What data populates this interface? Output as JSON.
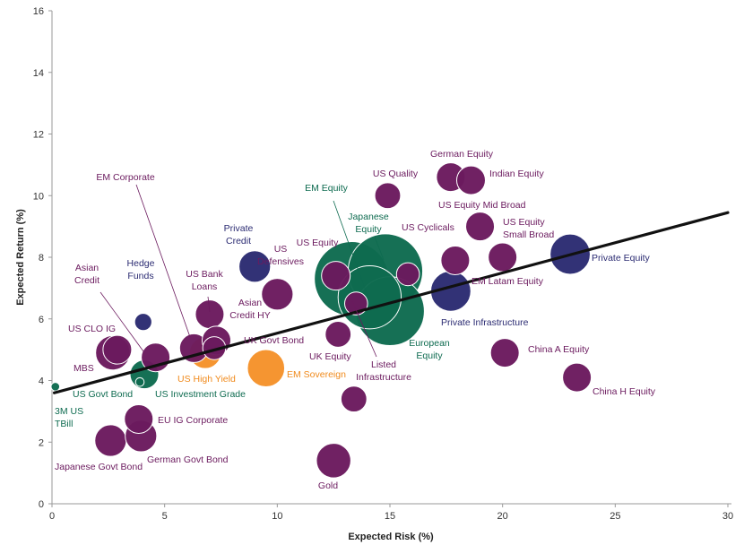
{
  "chart_data": {
    "type": "scatter",
    "title": "",
    "xlabel": "Expected Risk (%)",
    "ylabel": "Expected Return (%)",
    "xlim": [
      0,
      30
    ],
    "ylim": [
      0,
      16
    ],
    "xticks": [
      0,
      5,
      10,
      15,
      20,
      25,
      30
    ],
    "yticks": [
      0,
      2,
      4,
      6,
      8,
      10,
      12,
      14,
      16
    ],
    "grid": false,
    "colors": {
      "purple": "#6b1a5e",
      "navy": "#2b2b72",
      "green": "#0e6b50",
      "orange": "#f5922a"
    },
    "trendline": {
      "x": [
        0.1,
        30
      ],
      "y": [
        3.6,
        9.45
      ]
    },
    "points": [
      {
        "name": "3M US TBill",
        "label_lines": [
          "3M US",
          "TBill"
        ],
        "x": 0.15,
        "y": 3.8,
        "size": 3,
        "color": "green"
      },
      {
        "name": "US Govt Bond",
        "label_lines": [
          "US Govt Bond"
        ],
        "x": 3.9,
        "y": 3.95,
        "size": 3,
        "color": "green"
      },
      {
        "name": "US Investment Grade",
        "label_lines": [
          "US Investment Grade"
        ],
        "x": 4.1,
        "y": 4.2,
        "size": 10,
        "color": "green"
      },
      {
        "name": "MBS",
        "label_lines": [
          "MBS"
        ],
        "x": 2.7,
        "y": 4.9,
        "size": 12,
        "color": "purple"
      },
      {
        "name": "US CLO IG",
        "label_lines": [
          "US CLO IG"
        ],
        "x": 2.9,
        "y": 5.0,
        "size": 10,
        "color": "purple"
      },
      {
        "name": "Asian Credit",
        "label_lines": [
          "Asian",
          "Credit"
        ],
        "x": 4.6,
        "y": 4.75,
        "size": 10,
        "color": "purple"
      },
      {
        "name": "Hedge Funds",
        "label_lines": [
          "Hedge",
          "Funds"
        ],
        "x": 4.05,
        "y": 5.9,
        "size": 6,
        "color": "navy"
      },
      {
        "name": "US Bank Loans",
        "label_lines": [
          "US Bank",
          "Loans"
        ],
        "x": 7.0,
        "y": 6.15,
        "size": 10,
        "color": "purple"
      },
      {
        "name": "EM Corporate",
        "label_lines": [
          "EM Corporate"
        ],
        "x": 6.3,
        "y": 5.05,
        "size": 10,
        "color": "purple"
      },
      {
        "name": "US High Yield",
        "label_lines": [
          "US High Yield"
        ],
        "x": 6.8,
        "y": 4.9,
        "size": 11,
        "color": "orange"
      },
      {
        "name": "Asian Credit HY",
        "label_lines": [
          "Asian",
          "Credit HY"
        ],
        "x": 7.3,
        "y": 5.3,
        "size": 10,
        "color": "purple"
      },
      {
        "name": "Japanese Govt Bond",
        "label_lines": [
          "Japanese Govt Bond"
        ],
        "x": 2.6,
        "y": 2.05,
        "size": 11,
        "color": "purple"
      },
      {
        "name": "German Govt Bond",
        "label_lines": [
          "German Govt Bond"
        ],
        "x": 3.95,
        "y": 2.2,
        "size": 11,
        "color": "purple"
      },
      {
        "name": "EU IG Corporate",
        "label_lines": [
          "EU IG Corporate"
        ],
        "x": 3.85,
        "y": 2.75,
        "size": 10,
        "color": "purple"
      },
      {
        "name": "Private Credit",
        "label_lines": [
          "Private",
          "Credit"
        ],
        "x": 9.0,
        "y": 7.7,
        "size": 11,
        "color": "navy"
      },
      {
        "name": "US Defensives",
        "label_lines": [
          "US",
          "Defensives"
        ],
        "x": 10.0,
        "y": 6.8,
        "size": 11,
        "color": "purple"
      },
      {
        "name": "UK Govt Bond",
        "label_lines": [
          "UK Govt Bond"
        ],
        "x": 7.2,
        "y": 5.05,
        "size": 8,
        "color": "purple"
      },
      {
        "name": "EM Sovereign",
        "label_lines": [
          "EM Sovereign"
        ],
        "x": 9.5,
        "y": 4.4,
        "size": 13,
        "color": "orange"
      },
      {
        "name": "UK Equity",
        "label_lines": [
          "UK Equity"
        ],
        "x": 12.7,
        "y": 5.5,
        "size": 9,
        "color": "purple"
      },
      {
        "name": "Listed Infrastructure",
        "label_lines": [
          "Listed",
          "Infrastructure"
        ],
        "x": 13.4,
        "y": 3.4,
        "size": 9,
        "color": "purple"
      },
      {
        "name": "Gold",
        "label_lines": [
          "Gold"
        ],
        "x": 12.5,
        "y": 1.4,
        "size": 12,
        "color": "purple"
      },
      {
        "name": "US Equity",
        "label_lines": [
          "US Equity"
        ],
        "x": 12.6,
        "y": 7.4,
        "size": 10,
        "color": "purple"
      },
      {
        "name": "EM Equity",
        "label_lines": [
          "EM Equity"
        ],
        "x": 13.3,
        "y": 7.3,
        "size": 26,
        "color": "green"
      },
      {
        "name": "Japanese Equity",
        "label_lines": [
          "Japanese",
          "Equity"
        ],
        "x": 14.8,
        "y": 7.55,
        "size": 26,
        "color": "green"
      },
      {
        "name": "European Equity",
        "label_lines": [
          "European",
          "Equity"
        ],
        "x": 15.0,
        "y": 6.25,
        "size": 24,
        "color": "green"
      },
      {
        "name": "EM Equity 2",
        "label_lines": [],
        "x": 14.1,
        "y": 6.7,
        "size": 22,
        "color": "green"
      },
      {
        "name": "US Cyclicals",
        "label_lines": [
          "US Cyclicals"
        ],
        "x": 15.8,
        "y": 7.45,
        "size": 8,
        "color": "purple"
      },
      {
        "name": "US Equity Small",
        "label_lines": [],
        "x": 13.5,
        "y": 6.5,
        "size": 8,
        "color": "purple"
      },
      {
        "name": "US Quality",
        "label_lines": [
          "US Quality"
        ],
        "x": 14.9,
        "y": 10.0,
        "size": 9,
        "color": "purple"
      },
      {
        "name": "German Equity",
        "label_lines": [
          "German Equity"
        ],
        "x": 17.7,
        "y": 10.6,
        "size": 10,
        "color": "purple"
      },
      {
        "name": "Indian Equity",
        "label_lines": [
          "Indian Equity"
        ],
        "x": 18.6,
        "y": 10.5,
        "size": 10,
        "color": "purple"
      },
      {
        "name": "US Equity Mid Broad",
        "label_lines": [
          "US Equity Mid Broad"
        ],
        "x": 19.0,
        "y": 9.0,
        "size": 10,
        "color": "purple"
      },
      {
        "name": "US Equity Small Broad",
        "label_lines": [
          "US Equity",
          "Small Broad"
        ],
        "x": 20.0,
        "y": 8.0,
        "size": 10,
        "color": "purple"
      },
      {
        "name": "Private Equity",
        "label_lines": [
          "Private Equity"
        ],
        "x": 23.0,
        "y": 8.1,
        "size": 14,
        "color": "navy"
      },
      {
        "name": "EM Latam Equity",
        "label_lines": [
          "EM Latam Equity"
        ],
        "x": 17.9,
        "y": 7.9,
        "size": 10,
        "color": "purple"
      },
      {
        "name": "Private Infrastructure",
        "label_lines": [
          "Private Infrastructure"
        ],
        "x": 17.7,
        "y": 6.9,
        "size": 14,
        "color": "navy"
      },
      {
        "name": "China A Equity",
        "label_lines": [
          "China A Equity"
        ],
        "x": 20.1,
        "y": 4.9,
        "size": 10,
        "color": "purple"
      },
      {
        "name": "China H Equity",
        "label_lines": [
          "China H Equity"
        ],
        "x": 23.3,
        "y": 4.1,
        "size": 10,
        "color": "purple"
      }
    ]
  }
}
